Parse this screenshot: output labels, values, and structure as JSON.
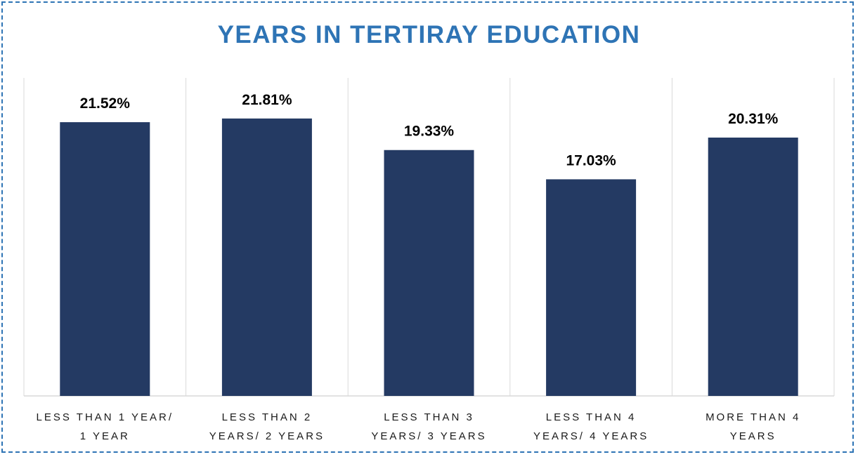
{
  "chart_data": {
    "type": "bar",
    "title": "YEARS IN TERTIRAY EDUCATION",
    "categories": [
      [
        "LESS THAN 1 YEAR/",
        "1 YEAR"
      ],
      [
        "LESS THAN 2",
        "YEARS/ 2 YEARS"
      ],
      [
        "LESS THAN 3",
        "YEARS/ 3 YEARS"
      ],
      [
        "LESS THAN 4",
        "YEARS/ 4 YEARS"
      ],
      [
        "MORE THAN 4",
        "YEARS"
      ]
    ],
    "values": [
      21.52,
      21.81,
      19.33,
      17.03,
      20.31
    ],
    "value_labels": [
      "21.52%",
      "21.81%",
      "19.33%",
      "17.03%",
      "20.31%"
    ],
    "ylim": [
      0,
      25
    ],
    "grid": false,
    "bar_color": "#243a63",
    "title_color": "#2e74b5",
    "border_color": "#2e74b5"
  }
}
